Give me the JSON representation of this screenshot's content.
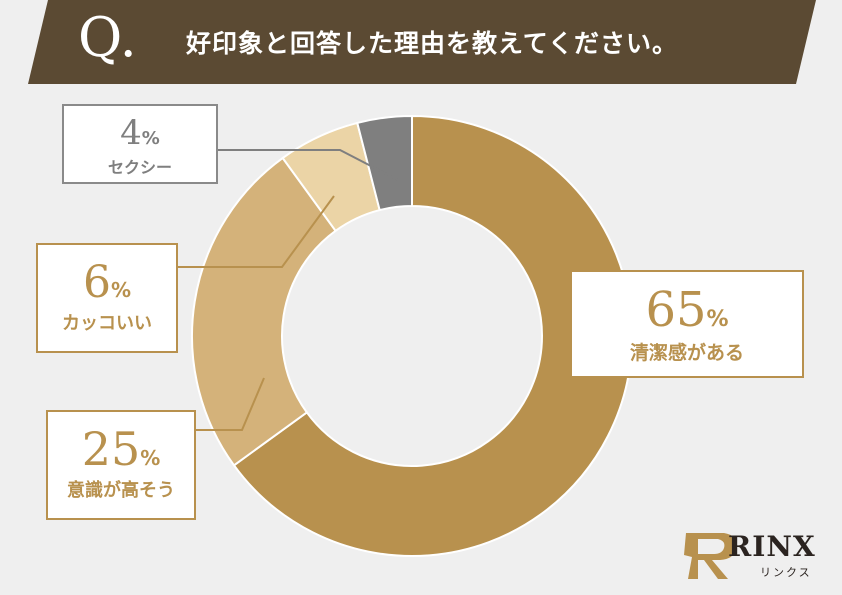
{
  "header": {
    "q_mark": "Q.",
    "question": "好印象と回答した理由を教えてください。"
  },
  "chart_data": {
    "type": "pie",
    "title": "好印象と回答した理由を教えてください。",
    "donut": true,
    "slices": [
      {
        "label": "清潔感がある",
        "value": 65,
        "color": "#b8914e"
      },
      {
        "label": "意識が高そう",
        "value": 25,
        "color": "#d4b27a"
      },
      {
        "label": "カッコいい",
        "value": 6,
        "color": "#ebd4a6"
      },
      {
        "label": "セクシー",
        "value": 4,
        "color": "#7f7f7f"
      }
    ]
  },
  "labels": {
    "l0": {
      "pct": "65",
      "unit": "%",
      "text": "清潔感がある"
    },
    "l1": {
      "pct": "25",
      "unit": "%",
      "text": "意識が高そう"
    },
    "l2": {
      "pct": "6",
      "unit": "%",
      "text": "カッコいい"
    },
    "l3": {
      "pct": "4",
      "unit": "%",
      "text": "セクシー"
    }
  },
  "logo": {
    "name": "RINX",
    "sub": "リンクス"
  }
}
